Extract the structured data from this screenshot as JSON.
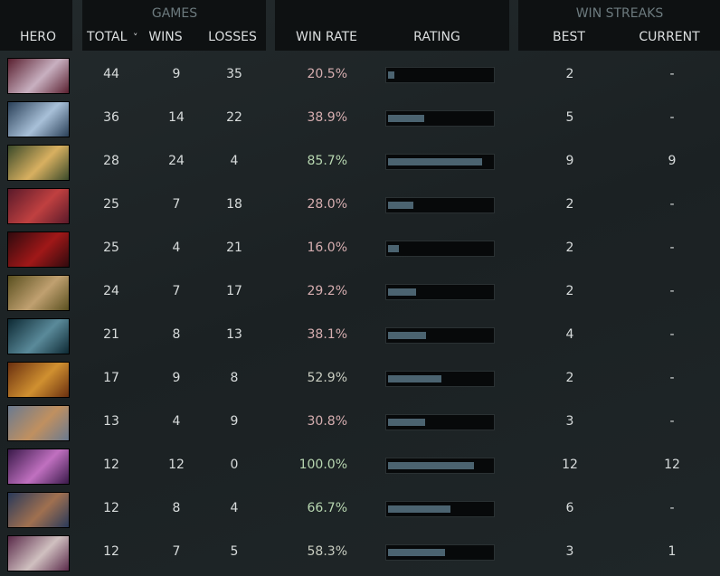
{
  "header": {
    "hero": "HERO",
    "games_group": "GAMES",
    "total": "TOTAL",
    "sort_indicator": "˅",
    "wins": "WINS",
    "losses": "LOSSES",
    "win_rate": "WIN RATE",
    "rating": "RATING",
    "streaks_group": "WIN STREAKS",
    "best": "BEST",
    "current": "CURRENT"
  },
  "rating_range": [
    0,
    100
  ],
  "rows": [
    {
      "total": "44",
      "wins": "9",
      "losses": "35",
      "win_rate": "20.5%",
      "win_rate_color": "#d6aeb0",
      "rating": 6,
      "best": "2",
      "current": "-"
    },
    {
      "total": "36",
      "wins": "14",
      "losses": "22",
      "win_rate": "38.9%",
      "win_rate_color": "#d6aeb0",
      "rating": 35,
      "best": "5",
      "current": "-"
    },
    {
      "total": "28",
      "wins": "24",
      "losses": "4",
      "win_rate": "85.7%",
      "win_rate_color": "#b7d6b0",
      "rating": 92,
      "best": "9",
      "current": "9"
    },
    {
      "total": "25",
      "wins": "7",
      "losses": "18",
      "win_rate": "28.0%",
      "win_rate_color": "#d6aeb0",
      "rating": 25,
      "best": "2",
      "current": "-"
    },
    {
      "total": "25",
      "wins": "4",
      "losses": "21",
      "win_rate": "16.0%",
      "win_rate_color": "#d6aeb0",
      "rating": 11,
      "best": "2",
      "current": "-"
    },
    {
      "total": "24",
      "wins": "7",
      "losses": "17",
      "win_rate": "29.2%",
      "win_rate_color": "#d6aeb0",
      "rating": 27,
      "best": "2",
      "current": "-"
    },
    {
      "total": "21",
      "wins": "8",
      "losses": "13",
      "win_rate": "38.1%",
      "win_rate_color": "#d6aeb0",
      "rating": 37,
      "best": "4",
      "current": "-"
    },
    {
      "total": "17",
      "wins": "9",
      "losses": "8",
      "win_rate": "52.9%",
      "win_rate_color": "#c8ccc0",
      "rating": 52,
      "best": "2",
      "current": "-"
    },
    {
      "total": "13",
      "wins": "4",
      "losses": "9",
      "win_rate": "30.8%",
      "win_rate_color": "#d6aeb0",
      "rating": 36,
      "best": "3",
      "current": "-"
    },
    {
      "total": "12",
      "wins": "12",
      "losses": "0",
      "win_rate": "100.0%",
      "win_rate_color": "#b7d6b0",
      "rating": 84,
      "best": "12",
      "current": "12"
    },
    {
      "total": "12",
      "wins": "8",
      "losses": "4",
      "win_rate": "66.7%",
      "win_rate_color": "#b7d6b0",
      "rating": 61,
      "best": "6",
      "current": "-"
    },
    {
      "total": "12",
      "wins": "7",
      "losses": "5",
      "win_rate": "58.3%",
      "win_rate_color": "#c8ccc0",
      "rating": 56,
      "best": "3",
      "current": "1"
    }
  ]
}
